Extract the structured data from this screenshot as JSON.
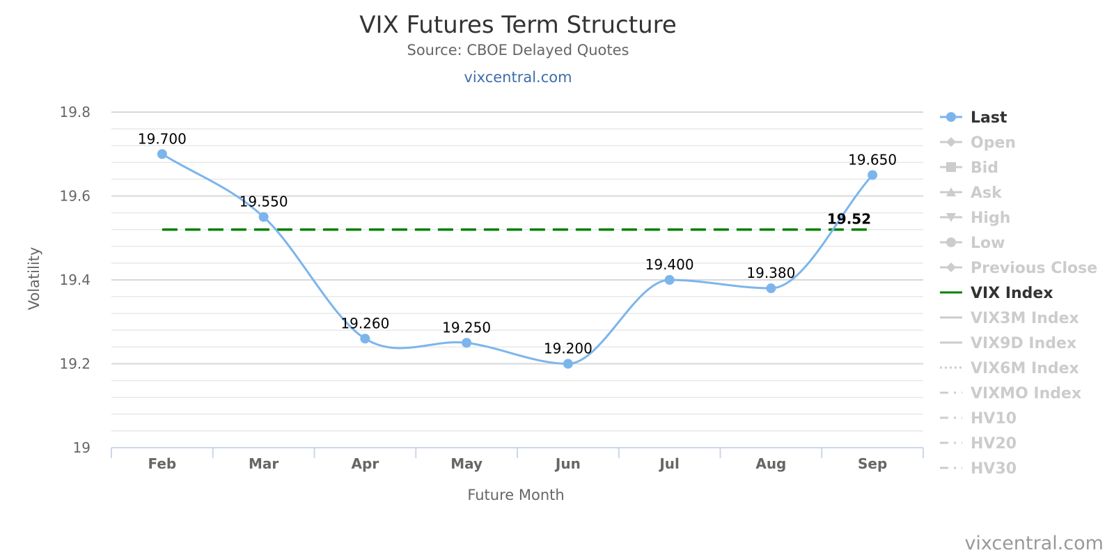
{
  "chart_data": {
    "type": "line",
    "title": "VIX Futures Term Structure",
    "subtitle": "Source: CBOE Delayed Quotes",
    "source_link": "vixcentral.com",
    "credit": "vixcentral.com",
    "xlabel": "Future Month",
    "ylabel": "Volatility",
    "categories": [
      "Feb",
      "Mar",
      "Apr",
      "May",
      "Jun",
      "Jul",
      "Aug",
      "Sep"
    ],
    "ylim": [
      19,
      19.8
    ],
    "yticks": [
      19,
      19.2,
      19.4,
      19.6,
      19.8
    ],
    "ytick_labels": [
      "19",
      "19.2",
      "19.4",
      "19.6",
      "19.8"
    ],
    "minor_grid_step": 0.04,
    "grid": true,
    "legend_position": "right",
    "series": [
      {
        "name": "Last",
        "values": [
          19.7,
          19.55,
          19.26,
          19.25,
          19.2,
          19.4,
          19.38,
          19.65
        ],
        "labels": [
          "19.700",
          "19.550",
          "19.260",
          "19.250",
          "19.200",
          "19.400",
          "19.380",
          "19.650"
        ],
        "color": "#7cb5ec",
        "style": "smooth-line-markers"
      },
      {
        "name": "VIX Index",
        "value": 19.52,
        "label": "19.52",
        "color": "#008000",
        "style": "dashed"
      }
    ],
    "legend": [
      {
        "name": "Last",
        "symbol": "circle",
        "active": true,
        "color": "#7cb5ec"
      },
      {
        "name": "Open",
        "symbol": "diamond",
        "active": false
      },
      {
        "name": "Bid",
        "symbol": "square",
        "active": false
      },
      {
        "name": "Ask",
        "symbol": "triangle",
        "active": false
      },
      {
        "name": "High",
        "symbol": "triangle-down",
        "active": false
      },
      {
        "name": "Low",
        "symbol": "circle",
        "active": false
      },
      {
        "name": "Previous Close",
        "symbol": "diamond",
        "active": false
      },
      {
        "name": "VIX Index",
        "symbol": "line",
        "active": true,
        "color": "#008000"
      },
      {
        "name": "VIX3M Index",
        "symbol": "line",
        "active": false
      },
      {
        "name": "VIX9D Index",
        "symbol": "line",
        "active": false
      },
      {
        "name": "VIX6M Index",
        "symbol": "dotted",
        "active": false
      },
      {
        "name": "VIXMO Index",
        "symbol": "dashdot",
        "active": false
      },
      {
        "name": "HV10",
        "symbol": "dashdot",
        "active": false
      },
      {
        "name": "HV20",
        "symbol": "dashdot",
        "active": false
      },
      {
        "name": "HV30",
        "symbol": "dashdot",
        "active": false
      }
    ],
    "inactive_color": "#cccccc",
    "active_text_color": "#333333"
  }
}
